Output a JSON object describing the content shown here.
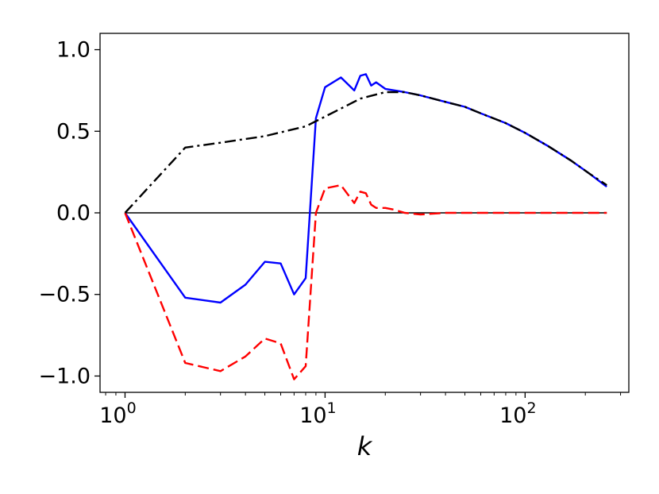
{
  "chart_data": {
    "type": "line",
    "title": "",
    "xlabel": "k",
    "ylabel": "",
    "xscale": "log",
    "xlim": [
      0.75,
      330
    ],
    "ylim": [
      -1.1,
      1.1
    ],
    "grid": false,
    "legend": "none",
    "xticks": [
      {
        "value": 1,
        "base": "10",
        "exp": "0"
      },
      {
        "value": 10,
        "base": "10",
        "exp": "1"
      },
      {
        "value": 100,
        "base": "10",
        "exp": "2"
      }
    ],
    "yticks": [
      {
        "value": -1.0,
        "label": "−1.0"
      },
      {
        "value": -0.5,
        "label": "−0.5"
      },
      {
        "value": 0.0,
        "label": "0.0"
      },
      {
        "value": 0.5,
        "label": "0.5"
      },
      {
        "value": 1.0,
        "label": "1.0"
      }
    ],
    "reference_line": {
      "y": 0,
      "x_range": [
        1,
        256
      ],
      "color": "#000000"
    },
    "series": [
      {
        "color": "#0000ff",
        "style": "solid",
        "x": [
          1,
          2,
          3,
          4,
          5,
          6,
          7,
          8,
          9,
          10,
          12,
          14,
          15,
          16,
          17,
          18,
          20,
          25,
          30,
          40,
          50,
          60,
          80,
          100,
          130,
          170,
          210,
          256
        ],
        "y": [
          0.0,
          -0.52,
          -0.55,
          -0.44,
          -0.3,
          -0.31,
          -0.5,
          -0.4,
          0.58,
          0.77,
          0.83,
          0.75,
          0.84,
          0.85,
          0.78,
          0.8,
          0.76,
          0.74,
          0.72,
          0.68,
          0.65,
          0.61,
          0.55,
          0.49,
          0.41,
          0.32,
          0.24,
          0.16
        ]
      },
      {
        "color": "#ff0000",
        "style": "dashed",
        "x": [
          1,
          2,
          3,
          4,
          5,
          6,
          7,
          8,
          9,
          10,
          12,
          14,
          15,
          16,
          17,
          18,
          20,
          22,
          25,
          30,
          40,
          60,
          100,
          150,
          256
        ],
        "y": [
          0.0,
          -0.92,
          -0.97,
          -0.88,
          -0.77,
          -0.8,
          -1.02,
          -0.94,
          0.0,
          0.15,
          0.17,
          0.06,
          0.13,
          0.12,
          0.05,
          0.03,
          0.03,
          0.02,
          0.0,
          -0.01,
          0.0,
          0.0,
          0.0,
          0.0,
          0.0
        ]
      },
      {
        "color": "#000000",
        "style": "dashdot",
        "x": [
          1,
          2,
          3,
          5,
          8,
          10,
          15,
          20,
          25,
          30,
          40,
          50,
          60,
          80,
          100,
          130,
          170,
          210,
          256
        ],
        "y": [
          0.0,
          0.4,
          0.43,
          0.47,
          0.53,
          0.59,
          0.7,
          0.74,
          0.74,
          0.72,
          0.68,
          0.65,
          0.61,
          0.55,
          0.49,
          0.41,
          0.32,
          0.24,
          0.17
        ]
      }
    ]
  }
}
